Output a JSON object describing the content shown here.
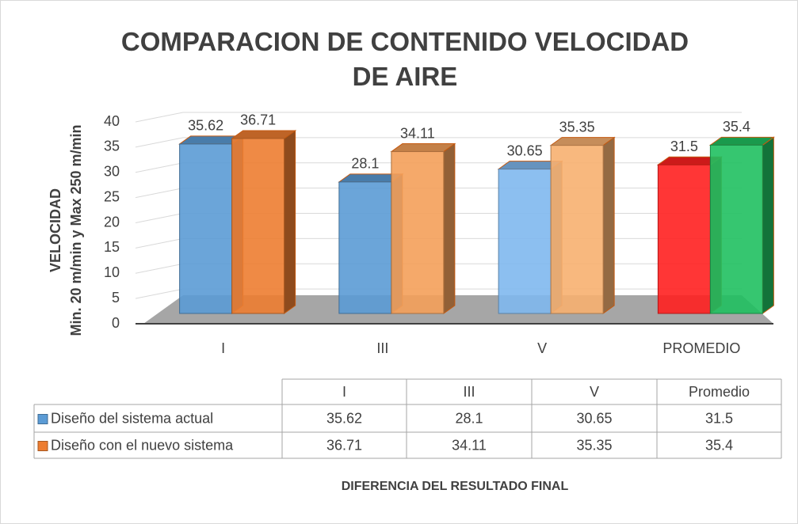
{
  "chart_data": {
    "type": "bar3d",
    "title": "COMPARACION DE CONTENIDO VELOCIDAD DE AIRE",
    "ylabel": [
      "VELOCIDAD",
      "Min. 20 m/min y Max 250 m/min"
    ],
    "xlabel": "DIFERENCIA DEL RESULTADO FINAL",
    "categories": [
      "I",
      "III",
      "V",
      "PROMEDIO"
    ],
    "table_headers": [
      "I",
      "III",
      "V",
      "Promedio"
    ],
    "series": [
      {
        "name": "Diseño del sistema actual",
        "color": "#5b9bd5",
        "colors": [
          "#5b9bd5",
          "#5b9bd5",
          "#7fb8ee",
          "#ff2020"
        ],
        "values": [
          35.62,
          28.1,
          30.65,
          31.5
        ]
      },
      {
        "name": "Diseño con el nuevo sistema",
        "color": "#ed7d31",
        "colors": [
          "#ed7d31",
          "#f4a05a",
          "#f7b070",
          "#20c060"
        ],
        "values": [
          36.71,
          34.11,
          35.35,
          35.4
        ]
      }
    ],
    "ylim": [
      0,
      40
    ],
    "yticks": [
      0,
      5,
      10,
      15,
      20,
      25,
      30,
      35,
      40
    ],
    "grid": true
  }
}
